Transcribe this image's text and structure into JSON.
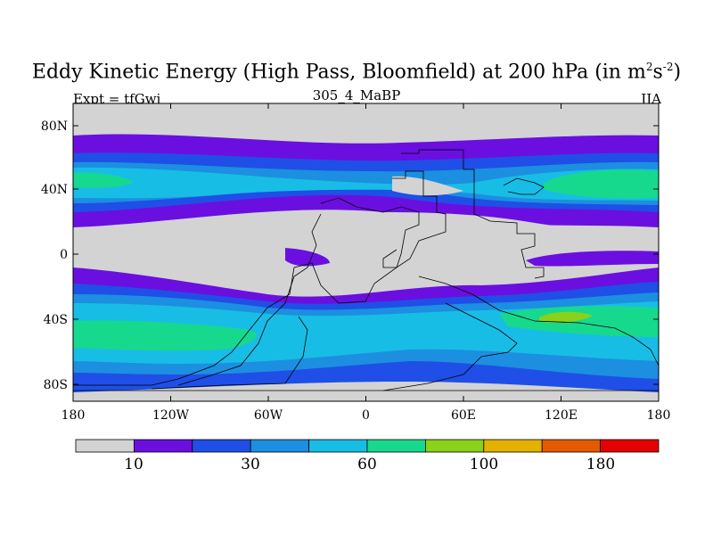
{
  "title": {
    "main": "Eddy Kinetic Energy (High Pass, Bloomfield) at 200 hPa (in m",
    "sup1": "2",
    "mid": "s",
    "sup2": "-2",
    "end": ")"
  },
  "subtitle": "305_4_MaBP",
  "expt_label": "Expt = tfGwj",
  "season_label": "JJA",
  "map": {
    "lon_ticks": [
      "180",
      "120W",
      "60W",
      "0",
      "60E",
      "120E",
      "180"
    ],
    "lat_ticks": [
      "80N",
      "40N",
      "0",
      "40S",
      "80S"
    ],
    "colors": {
      "c0": "#d3d3d3",
      "c1": "#6a0fe0",
      "c2": "#1f4fe6",
      "c3": "#1c8fe0",
      "c4": "#18bde6",
      "c5": "#16d98e",
      "c6": "#8ad11a",
      "c7": "#e5b100",
      "c8": "#e55a00",
      "c9": "#e60000"
    }
  },
  "colorbar": {
    "colors": [
      "#d3d3d3",
      "#6a0fe0",
      "#1f4fe6",
      "#1c8fe0",
      "#18bde6",
      "#16d98e",
      "#8ad11a",
      "#e5b100",
      "#e55a00",
      "#e60000"
    ],
    "labels": [
      "10",
      "30",
      "60",
      "100",
      "180"
    ]
  }
}
